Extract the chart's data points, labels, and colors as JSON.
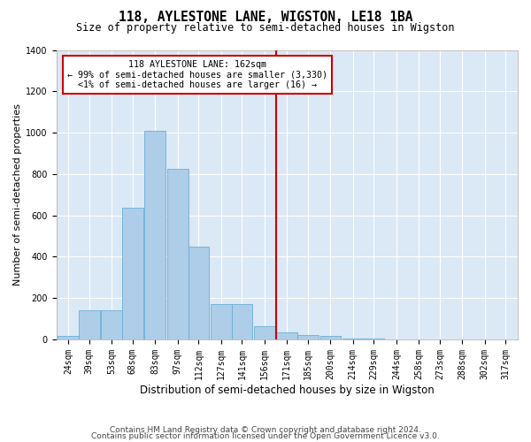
{
  "title": "118, AYLESTONE LANE, WIGSTON, LE18 1BA",
  "subtitle": "Size of property relative to semi-detached houses in Wigston",
  "xlabel": "Distribution of semi-detached houses by size in Wigston",
  "ylabel": "Number of semi-detached properties",
  "footnote1": "Contains HM Land Registry data © Crown copyright and database right 2024.",
  "footnote2": "Contains public sector information licensed under the Open Government Licence v3.0.",
  "annotation_title": "118 AYLESTONE LANE: 162sqm",
  "annotation_line1": "← 99% of semi-detached houses are smaller (3,330)",
  "annotation_line2": "<1% of semi-detached houses are larger (16) →",
  "bar_color": "#aecde8",
  "bar_edge_color": "#6aaed6",
  "background_color": "#dbe8f5",
  "grid_color": "#ffffff",
  "fig_bg_color": "#ffffff",
  "vline_color": "#cc0000",
  "vline_x_bin": 10,
  "categories": [
    "24sqm",
    "39sqm",
    "53sqm",
    "68sqm",
    "83sqm",
    "97sqm",
    "112sqm",
    "127sqm",
    "141sqm",
    "156sqm",
    "171sqm",
    "185sqm",
    "200sqm",
    "214sqm",
    "229sqm",
    "244sqm",
    "258sqm",
    "273sqm",
    "288sqm",
    "302sqm",
    "317sqm"
  ],
  "bin_left_edges": [
    17,
    31,
    46,
    60,
    75,
    90,
    104,
    119,
    133,
    148,
    163,
    177,
    192,
    207,
    221,
    236,
    251,
    265,
    280,
    295,
    309
  ],
  "bin_width": 14,
  "values": [
    15,
    140,
    140,
    635,
    1010,
    825,
    450,
    170,
    170,
    65,
    35,
    20,
    15,
    5,
    3,
    2,
    1,
    1,
    1,
    0,
    1
  ],
  "ylim": [
    0,
    1400
  ],
  "yticks": [
    0,
    200,
    400,
    600,
    800,
    1000,
    1200,
    1400
  ],
  "title_fontsize": 10.5,
  "subtitle_fontsize": 8.5,
  "ylabel_fontsize": 8,
  "xlabel_fontsize": 8.5,
  "tick_fontsize": 7,
  "footnote_fontsize": 6.5
}
